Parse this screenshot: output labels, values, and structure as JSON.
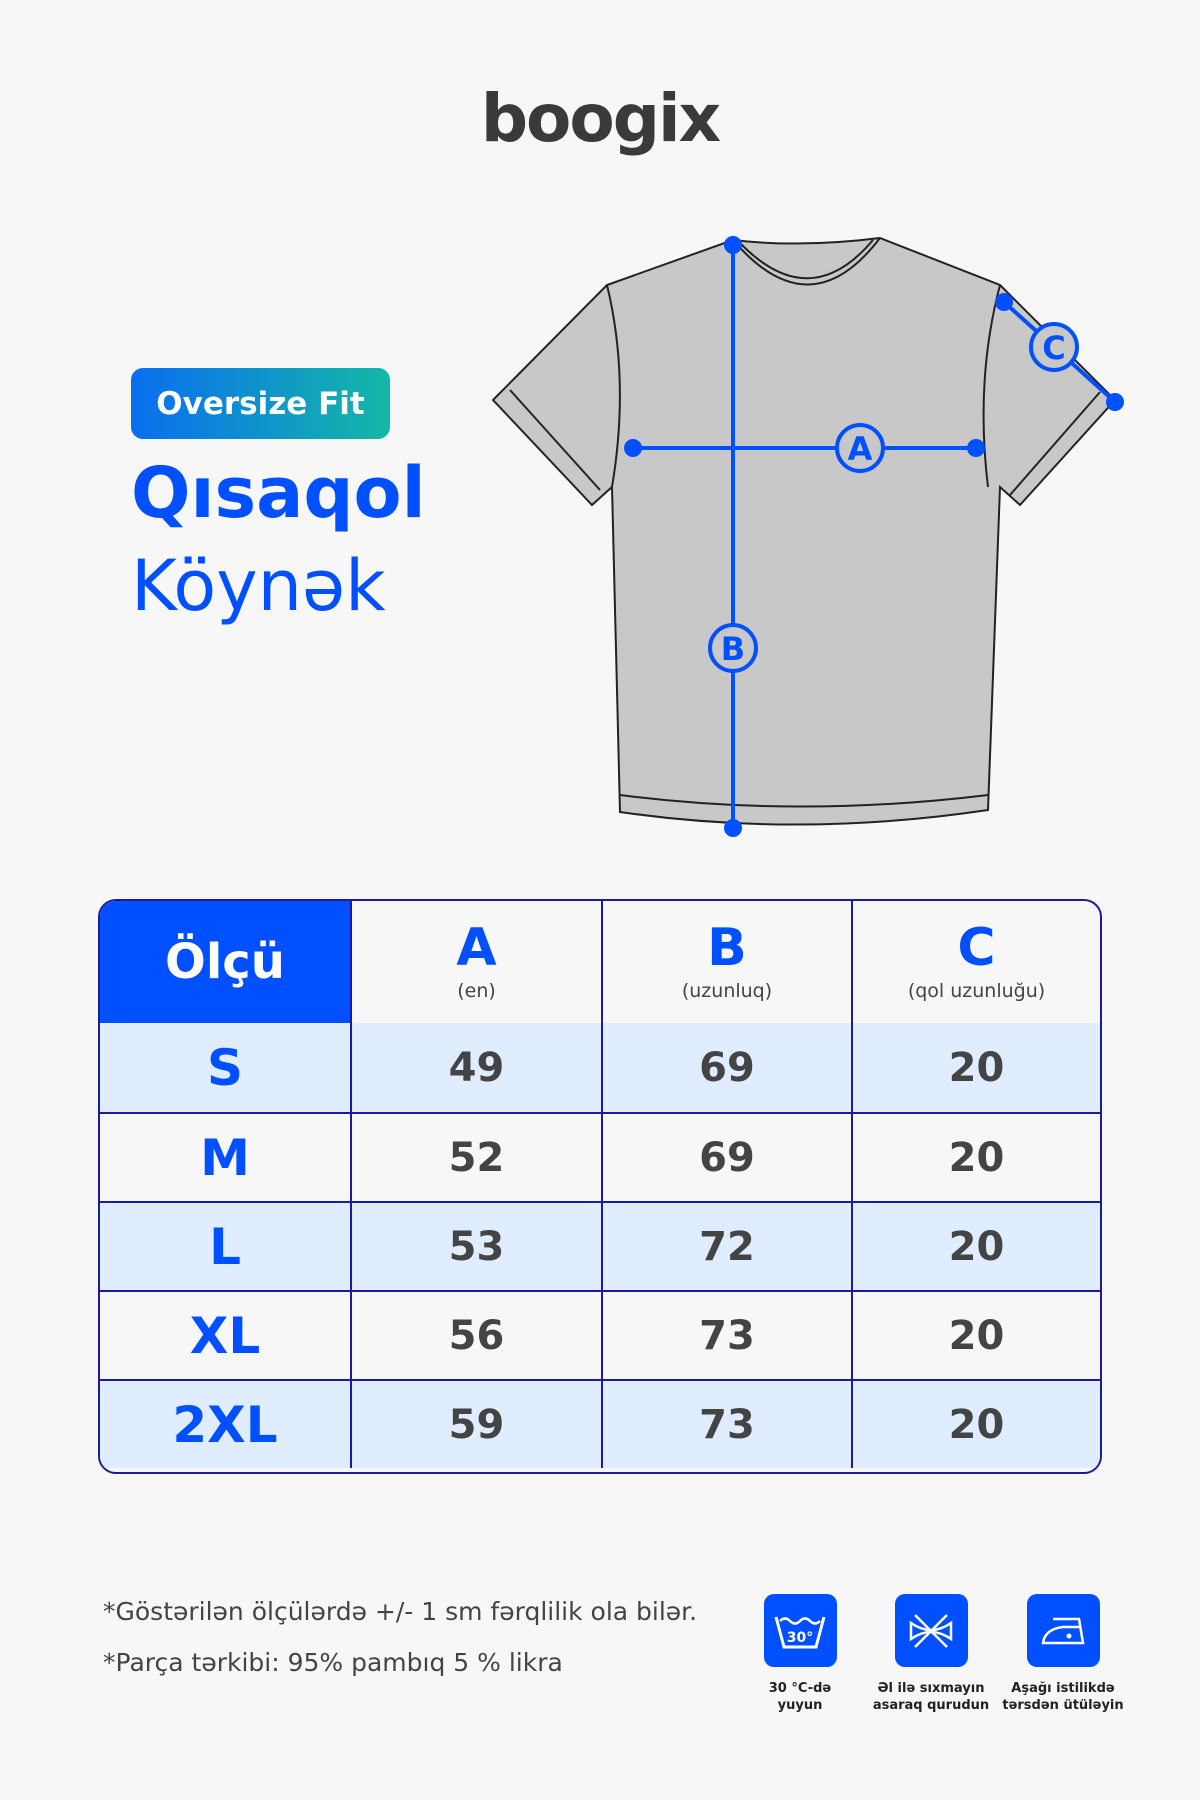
{
  "brand": "boogix",
  "badge": "Oversize Fit",
  "title_line1": "Qısaqol",
  "title_line2": "Köynək",
  "diagram": {
    "labels": [
      "A",
      "B",
      "C"
    ]
  },
  "table": {
    "header": {
      "size_label": "Ölçü",
      "columns": [
        {
          "letter": "A",
          "sub": "(en)"
        },
        {
          "letter": "B",
          "sub": "(uzunluq)"
        },
        {
          "letter": "C",
          "sub": "(qol uzunluğu)"
        }
      ]
    },
    "rows": [
      {
        "size": "S",
        "a": "49",
        "b": "69",
        "c": "20"
      },
      {
        "size": "M",
        "a": "52",
        "b": "69",
        "c": "20"
      },
      {
        "size": "L",
        "a": "53",
        "b": "72",
        "c": "20"
      },
      {
        "size": "XL",
        "a": "56",
        "b": "73",
        "c": "20"
      },
      {
        "size": "2XL",
        "a": "59",
        "b": "73",
        "c": "20"
      }
    ]
  },
  "notes": [
    "*Göstərilən ölçülərdə +/- 1 sm fərqlilik ola bilər.",
    "*Parça tərkibi: 95% pambıq 5 % likra"
  ],
  "care": [
    {
      "icon": "wash-30-icon",
      "temp": "30°",
      "line1": "30 °C-də",
      "line2": "yuyun"
    },
    {
      "icon": "no-wring-icon",
      "line1": "Əl ilə sıxmayın",
      "line2": "asaraq qurudun"
    },
    {
      "icon": "iron-low-icon",
      "line1": "Aşağı istilikdə",
      "line2": "tərsdən ütüləyin"
    }
  ],
  "colors": {
    "accent": "#0050ff",
    "row_alt": "#e0ecff",
    "border": "#1b1aa0"
  }
}
